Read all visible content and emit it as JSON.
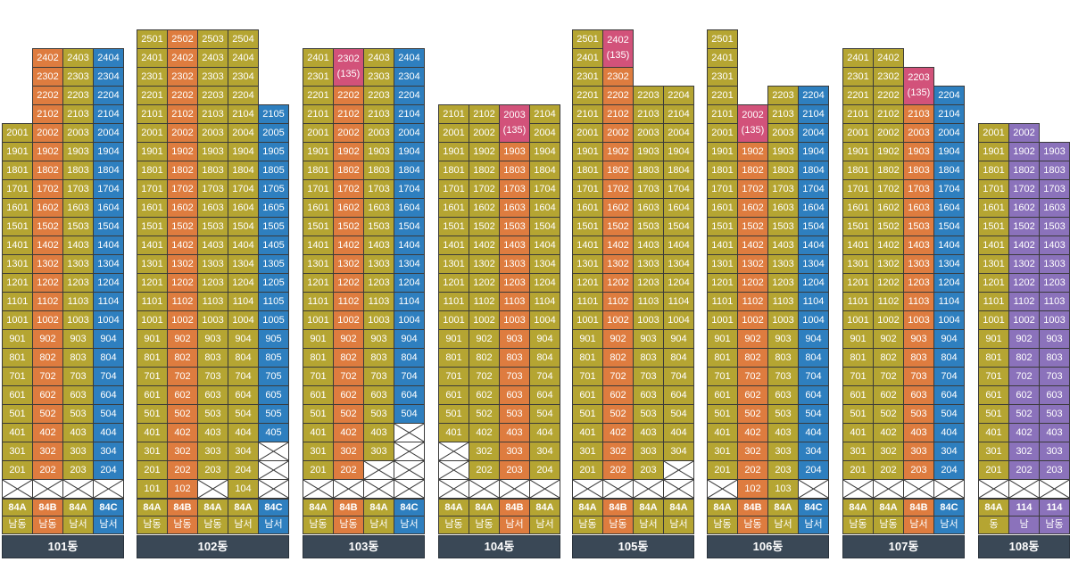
{
  "colors": {
    "Y": "#b5a532",
    "O": "#de7c3f",
    "B": "#2e7fbf",
    "P": "#8b72bb",
    "M": "#d2527a",
    "label_bg": "#3a4856"
  },
  "buildings": [
    {
      "name": "101동",
      "columns": [
        {
          "type": "84A",
          "dir": "남동",
          "color": "Y",
          "top_floor": 20,
          "skip": []
        },
        {
          "type": "84B",
          "dir": "남동",
          "color": "O",
          "top_floor": 24,
          "skip": []
        },
        {
          "type": "84A",
          "dir": "남서",
          "color": "Y",
          "top_floor": 24,
          "skip": []
        },
        {
          "type": "84C",
          "dir": "남서",
          "color": "B",
          "top_floor": 24,
          "skip": []
        }
      ],
      "crossed": [
        [
          1,
          1
        ],
        [
          2,
          1
        ],
        [
          3,
          1
        ],
        [
          4,
          1
        ]
      ],
      "special": []
    },
    {
      "name": "102동",
      "columns": [
        {
          "type": "84A",
          "dir": "남동",
          "color": "Y",
          "top_floor": 25,
          "skip": []
        },
        {
          "type": "84B",
          "dir": "남동",
          "color": "O",
          "top_floor": 25,
          "skip": []
        },
        {
          "type": "84A",
          "dir": "남동",
          "color": "Y",
          "top_floor": 25,
          "skip": []
        },
        {
          "type": "84A",
          "dir": "남서",
          "color": "Y",
          "top_floor": 25,
          "skip": []
        },
        {
          "type": "84C",
          "dir": "남서",
          "color": "B",
          "top_floor": 21,
          "skip": []
        }
      ],
      "crossed": [
        [
          3,
          1
        ],
        [
          5,
          1
        ],
        [
          5,
          2
        ],
        [
          5,
          3
        ]
      ],
      "special": []
    },
    {
      "name": "103동",
      "columns": [
        {
          "type": "84A",
          "dir": "남동",
          "color": "Y",
          "top_floor": 24,
          "skip": []
        },
        {
          "type": "84B",
          "dir": "남동",
          "color": "O",
          "top_floor": 24,
          "skip": []
        },
        {
          "type": "84A",
          "dir": "남서",
          "color": "Y",
          "top_floor": 24,
          "skip": []
        },
        {
          "type": "84C",
          "dir": "남서",
          "color": "B",
          "top_floor": 24,
          "skip": []
        }
      ],
      "crossed": [
        [
          1,
          1
        ],
        [
          2,
          1
        ],
        [
          3,
          1
        ],
        [
          4,
          1
        ],
        [
          3,
          2
        ],
        [
          4,
          2
        ],
        [
          4,
          3
        ],
        [
          4,
          4
        ]
      ],
      "special": [
        {
          "col": 2,
          "floor": 23,
          "text": "2302",
          "sub": "(135)"
        }
      ]
    },
    {
      "name": "104동",
      "columns": [
        {
          "type": "84A",
          "dir": "남동",
          "color": "Y",
          "top_floor": 21,
          "skip": []
        },
        {
          "type": "84A",
          "dir": "남동",
          "color": "Y",
          "top_floor": 21,
          "skip": []
        },
        {
          "type": "84B",
          "dir": "남서",
          "color": "O",
          "top_floor": 21,
          "skip": []
        },
        {
          "type": "84A",
          "dir": "남서",
          "color": "Y",
          "top_floor": 21,
          "skip": []
        }
      ],
      "crossed": [
        [
          1,
          1
        ],
        [
          2,
          1
        ],
        [
          3,
          1
        ],
        [
          4,
          1
        ],
        [
          1,
          2
        ],
        [
          1,
          3
        ]
      ],
      "special": [
        {
          "col": 3,
          "floor": 20,
          "text": "2003",
          "sub": "(135)"
        }
      ]
    },
    {
      "name": "105동",
      "columns": [
        {
          "type": "84A",
          "dir": "남동",
          "color": "Y",
          "top_floor": 25,
          "skip": []
        },
        {
          "type": "84B",
          "dir": "남동",
          "color": "O",
          "top_floor": 24,
          "skip": []
        },
        {
          "type": "84A",
          "dir": "남서",
          "color": "Y",
          "top_floor": 22,
          "skip": []
        },
        {
          "type": "84A",
          "dir": "남서",
          "color": "Y",
          "top_floor": 22,
          "skip": []
        }
      ],
      "crossed": [
        [
          1,
          1
        ],
        [
          2,
          1
        ],
        [
          3,
          1
        ],
        [
          4,
          1
        ],
        [
          4,
          2
        ]
      ],
      "special": [
        {
          "col": 2,
          "floor": 24,
          "text": "2402",
          "sub": "(135)"
        }
      ]
    },
    {
      "name": "106동",
      "columns": [
        {
          "type": "84A",
          "dir": "남동",
          "color": "Y",
          "top_floor": 25,
          "skip": []
        },
        {
          "type": "84B",
          "dir": "남동",
          "color": "O",
          "top_floor": 20,
          "skip": []
        },
        {
          "type": "84A",
          "dir": "남서",
          "color": "Y",
          "top_floor": 22,
          "skip": []
        },
        {
          "type": "84C",
          "dir": "남서",
          "color": "B",
          "top_floor": 22,
          "skip": []
        }
      ],
      "crossed": [
        [
          1,
          1
        ],
        [
          4,
          1
        ]
      ],
      "special": [
        {
          "col": 2,
          "floor": 20,
          "text": "2002",
          "sub": "(135)"
        }
      ]
    },
    {
      "name": "107동",
      "columns": [
        {
          "type": "84A",
          "dir": "남동",
          "color": "Y",
          "top_floor": 24,
          "skip": []
        },
        {
          "type": "84A",
          "dir": "남동",
          "color": "Y",
          "top_floor": 24,
          "skip": []
        },
        {
          "type": "84B",
          "dir": "남서",
          "color": "O",
          "top_floor": 22,
          "skip": []
        },
        {
          "type": "84C",
          "dir": "남서",
          "color": "B",
          "top_floor": 22,
          "skip": []
        }
      ],
      "crossed": [
        [
          1,
          1
        ],
        [
          2,
          1
        ],
        [
          3,
          1
        ],
        [
          4,
          1
        ]
      ],
      "special": [
        {
          "col": 3,
          "floor": 22,
          "text": "2203",
          "sub": "(135)"
        }
      ]
    },
    {
      "name": "108동",
      "columns": [
        {
          "type": "84A",
          "dir": "동",
          "color": "Y",
          "top_floor": 20,
          "skip": []
        },
        {
          "type": "114",
          "dir": "남",
          "color": "P",
          "top_floor": 20,
          "skip": []
        },
        {
          "type": "114",
          "dir": "남동",
          "color": "P",
          "top_floor": 19,
          "skip": []
        }
      ],
      "crossed": [
        [
          1,
          1
        ],
        [
          2,
          1
        ],
        [
          3,
          1
        ]
      ],
      "special": []
    }
  ],
  "overrides": {
    "102동": {
      "2": {
        "1": "102"
      },
      "1": {
        "1": "101"
      },
      "4": {
        "1": "104"
      }
    },
    "106동": {
      "2": {
        "1": "102"
      },
      "3": {
        "1": "103"
      }
    },
    "108동": {
      "2": {
        "20": "2002"
      }
    }
  },
  "extra_colors": {
    "106동": {
      "2": "O"
    }
  }
}
